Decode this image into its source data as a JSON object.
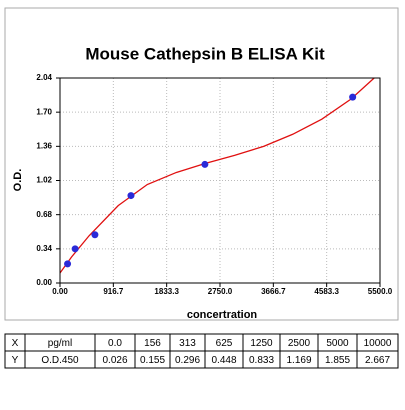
{
  "chart_data": {
    "type": "scatter",
    "title": "Mouse Cathepsin B ELISA Kit",
    "x_label": "concertration",
    "y_label": "O.D.",
    "xlim": [
      0,
      5500
    ],
    "ylim": [
      0,
      2.04
    ],
    "xticks": [
      {
        "value": 0,
        "label": "0.00"
      },
      916.7,
      1833.3,
      {
        "value": 2750,
        "label": "2750.0"
      },
      3666.7,
      4583.3,
      {
        "value": 5500,
        "label": "5500.0"
      }
    ],
    "yticks": [
      {
        "value": 0,
        "label": "0.00"
      },
      0.34,
      0.68,
      1.02,
      1.36,
      {
        "value": 1.7,
        "label": "1.70"
      },
      2.04
    ],
    "grid": true,
    "series": [
      {
        "color": "#e01010",
        "style": "line",
        "x": [
          0,
          200,
          500,
          1000,
          1500,
          2000,
          2500,
          3000,
          3500,
          4000,
          4500,
          5000,
          5400
        ],
        "values": [
          0.1,
          0.26,
          0.47,
          0.77,
          0.98,
          1.1,
          1.19,
          1.27,
          1.36,
          1.48,
          1.63,
          1.83,
          2.04
        ]
      },
      {
        "color": "#2a2ad8",
        "style": "marker",
        "x": [
          130,
          260,
          600,
          1220,
          2490,
          5030
        ],
        "values": [
          0.19,
          0.34,
          0.48,
          0.87,
          1.18,
          1.85
        ]
      }
    ]
  },
  "table": {
    "rows": [
      [
        "X",
        "pg/ml",
        "0.0",
        "156",
        "313",
        "625",
        "1250",
        "2500",
        "5000",
        "10000"
      ],
      [
        "Y",
        "O.D.450",
        "0.026",
        "0.155",
        "0.296",
        "0.448",
        "0.833",
        "1.169",
        "1.855",
        "2.667"
      ]
    ]
  }
}
